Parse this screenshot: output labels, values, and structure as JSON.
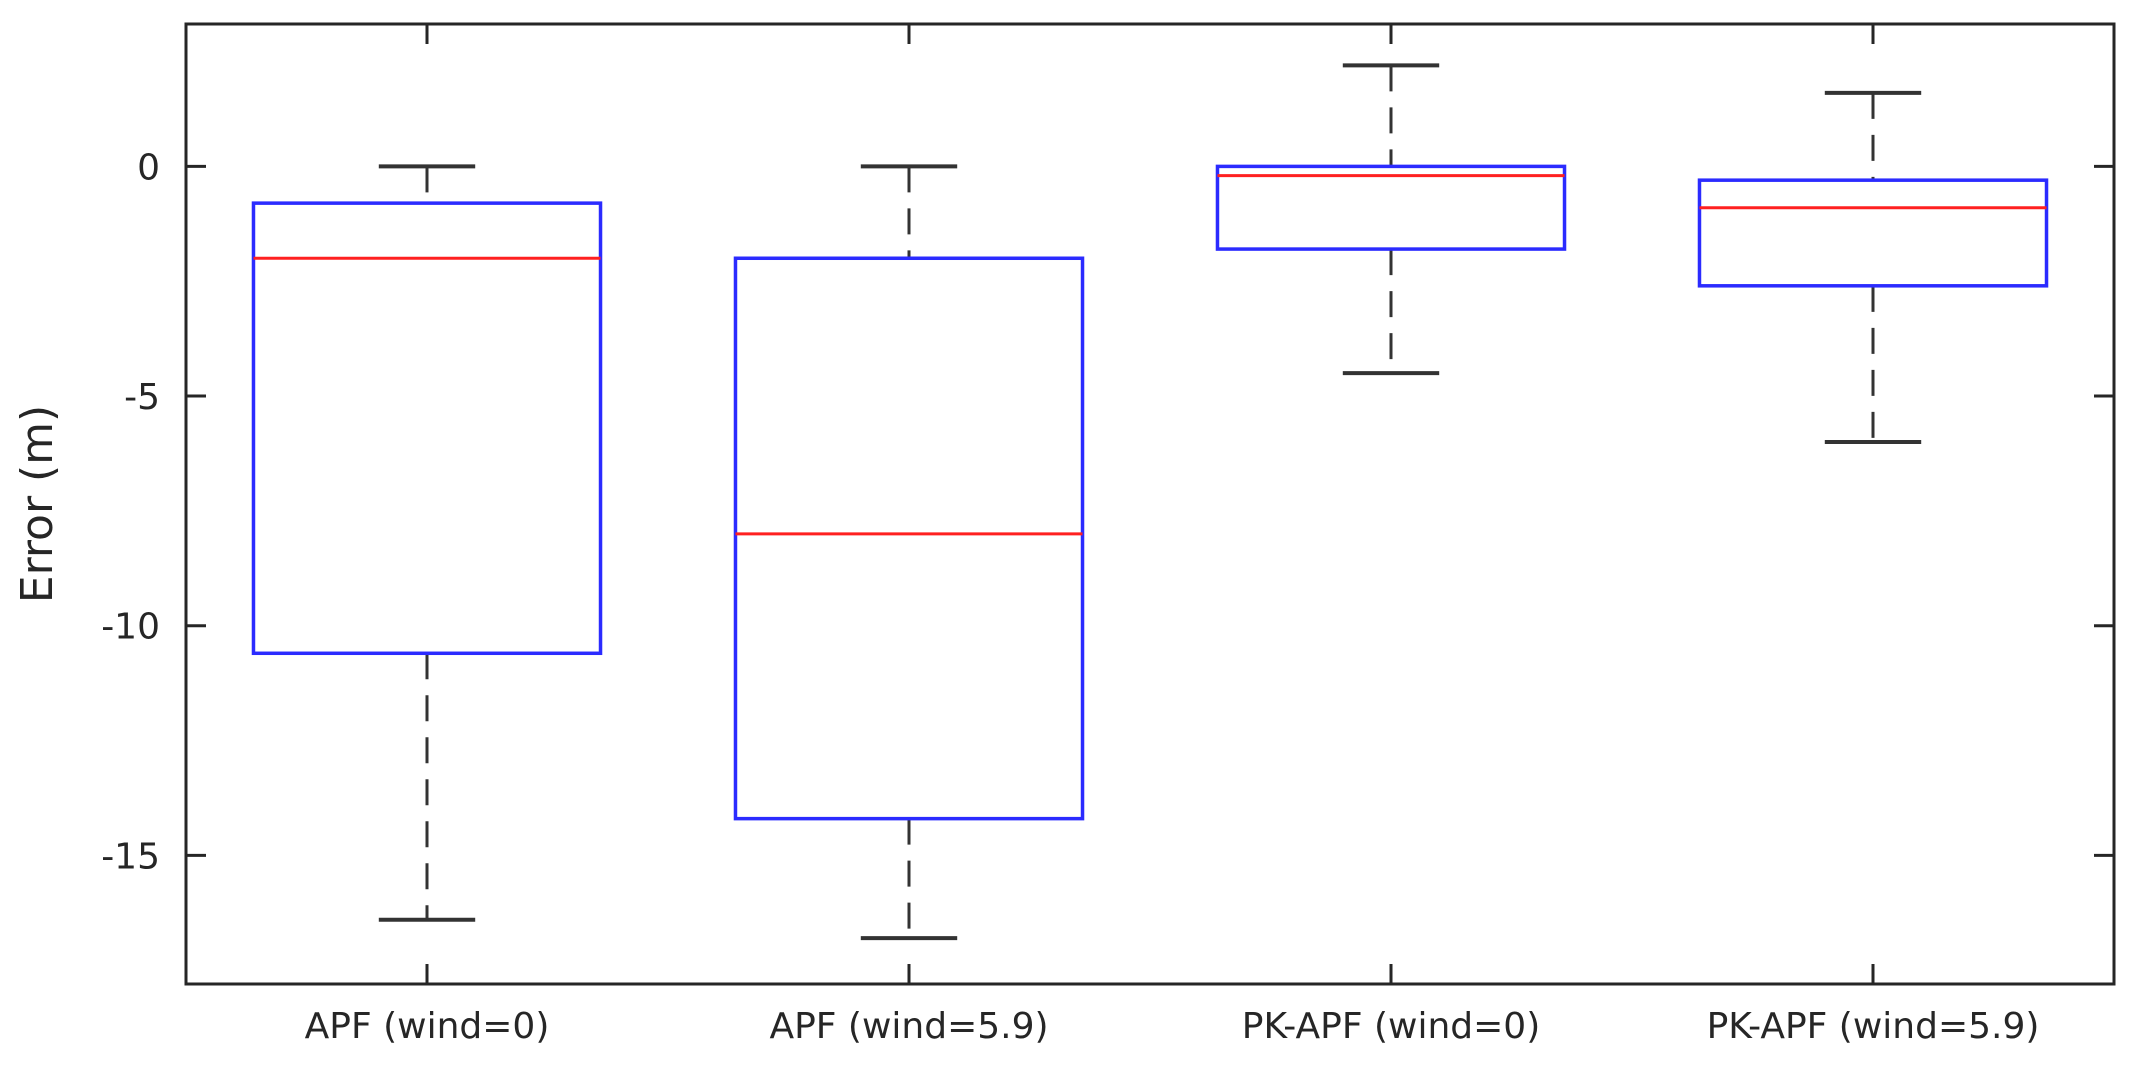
{
  "chart_data": {
    "type": "box",
    "title": "",
    "xlabel": "",
    "ylabel": "Error (m)",
    "ylim": [
      -17.8,
      3.1
    ],
    "yticks": [
      0,
      -5,
      -10,
      -15
    ],
    "ytick_labels": [
      "0",
      "-5",
      "-10",
      "-15"
    ],
    "grid": false,
    "categories": [
      "APF (wind=0)",
      "APF (wind=5.9)",
      "PK-APF (wind=0)",
      "PK-APF (wind=5.9)"
    ],
    "boxes": [
      {
        "category": "APF (wind=0)",
        "whisker_low": -16.4,
        "q1": -10.6,
        "median": -2.0,
        "q3": -0.8,
        "whisker_high": 0.0
      },
      {
        "category": "APF (wind=5.9)",
        "whisker_low": -16.8,
        "q1": -14.2,
        "median": -8.0,
        "q3": -2.0,
        "whisker_high": 0.0
      },
      {
        "category": "PK-APF (wind=0)",
        "whisker_low": -4.5,
        "q1": -1.8,
        "median": -0.2,
        "q3": 0.0,
        "whisker_high": 2.2
      },
      {
        "category": "PK-APF (wind=5.9)",
        "whisker_low": -6.0,
        "q1": -2.6,
        "median": -0.9,
        "q3": -0.3,
        "whisker_high": 1.6
      }
    ],
    "colors": {
      "box": "#2b2bff",
      "median": "#ff2020",
      "whisker": "#333333",
      "axis": "#262626"
    }
  }
}
